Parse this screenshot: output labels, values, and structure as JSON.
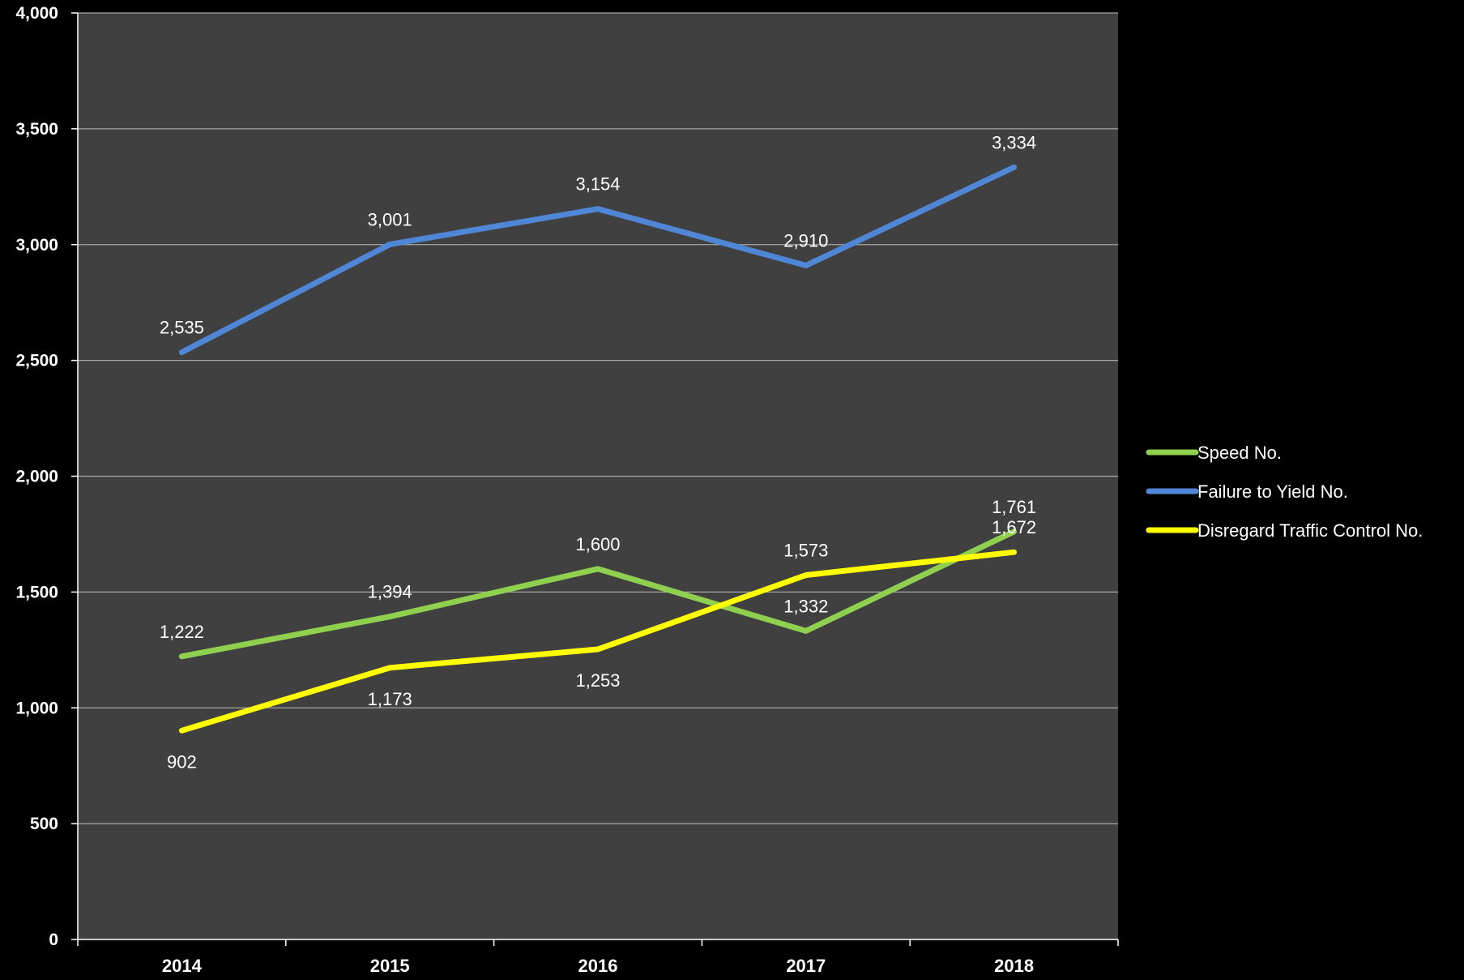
{
  "chart_data": {
    "type": "line",
    "title": "",
    "xlabel": "",
    "ylabel": "",
    "categories": [
      "2014",
      "2015",
      "2016",
      "2017",
      "2018"
    ],
    "ylim": [
      0,
      4000
    ],
    "yticks": [
      0,
      500,
      1000,
      1500,
      2000,
      2500,
      3000,
      3500,
      4000
    ],
    "ytick_labels": [
      "0",
      "500",
      "1,000",
      "1,500",
      "2,000",
      "2,500",
      "3,000",
      "3,500",
      "4,000"
    ],
    "grid": true,
    "legend_position": "right",
    "background_color": "#000000",
    "plot_background_color": "#404040",
    "gridline_color": "#a6a6a6",
    "series": [
      {
        "name": "Speed No.",
        "color": "#8fd14f",
        "values": [
          1222,
          1394,
          1600,
          1332,
          1761
        ],
        "labels": [
          "1,222",
          "1,394",
          "1,600",
          "1,332",
          "1,761"
        ],
        "label_positions": [
          "above",
          "above",
          "above",
          "above",
          "above"
        ]
      },
      {
        "name": "Failure to Yield No.",
        "color": "#4f86d6",
        "values": [
          2535,
          3001,
          3154,
          2910,
          3334
        ],
        "labels": [
          "2,535",
          "3,001",
          "3,154",
          "2,910",
          "3,334"
        ],
        "label_positions": [
          "above",
          "above",
          "above",
          "above",
          "above"
        ]
      },
      {
        "name": "Disregard Traffic Control No.",
        "color": "#ffff00",
        "values": [
          902,
          1173,
          1253,
          1573,
          1672
        ],
        "labels": [
          "902",
          "1,173",
          "1,253",
          "1,573",
          "1,672"
        ],
        "label_positions": [
          "below",
          "below",
          "below",
          "above",
          "above"
        ]
      }
    ]
  }
}
